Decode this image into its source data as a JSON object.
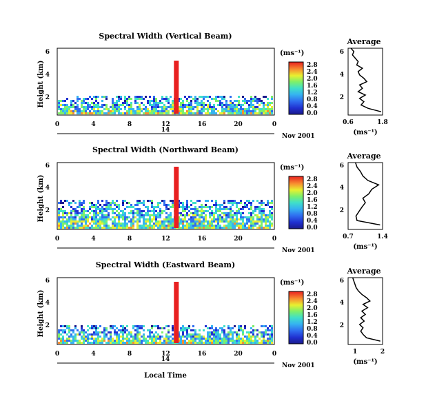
{
  "figure": {
    "footer_label": "Local Time",
    "date_label": "Nov 2001",
    "date_day": "14"
  },
  "chart_data": [
    {
      "type": "heatmap",
      "title": "Spectral Width (Vertical Beam)",
      "xlabel": "",
      "ylabel": "Height (km)",
      "xlim": [
        0,
        24
      ],
      "ylim": [
        0,
        6
      ],
      "xticks": [
        "0",
        "4",
        "8",
        "12",
        "16",
        "20",
        "0"
      ],
      "yticks": [
        "2",
        "4",
        "6"
      ],
      "colorbar": {
        "unit": "(ms⁻¹)",
        "range": [
          0.0,
          2.8
        ],
        "tick_labels": [
          "0.0",
          "0.4",
          "0.8",
          "1.2",
          "1.6",
          "2.0",
          "2.4",
          "2.8"
        ]
      },
      "profile": {
        "title": "Average",
        "xlabel": "(ms⁻¹)",
        "xlim": [
          0.6,
          1.8
        ],
        "xticks": [
          "0.6",
          "1.8"
        ],
        "yticks": [
          "2",
          "4",
          "6"
        ],
        "heights": [
          0.3,
          0.6,
          0.9,
          1.2,
          1.5,
          1.8,
          2.1,
          2.4,
          2.7,
          3.0,
          3.3,
          3.6,
          3.9,
          4.2,
          4.5,
          4.8,
          5.1,
          5.4,
          5.7,
          6.0
        ],
        "values": [
          1.75,
          1.3,
          1.05,
          1.15,
          1.0,
          1.2,
          0.95,
          1.1,
          1.0,
          1.25,
          1.15,
          1.0,
          0.95,
          1.1,
          0.9,
          0.95,
          0.85,
          0.75,
          0.8,
          0.7
        ]
      }
    },
    {
      "type": "heatmap",
      "title": "Spectral Width (Northward Beam)",
      "xlabel": "",
      "ylabel": "Height (km)",
      "xlim": [
        0,
        24
      ],
      "ylim": [
        0,
        6
      ],
      "xticks": [
        "0",
        "4",
        "8",
        "12",
        "16",
        "20",
        "0"
      ],
      "yticks": [
        "2",
        "4",
        "6"
      ],
      "colorbar": {
        "unit": "(ms⁻¹)",
        "range": [
          0.0,
          2.8
        ],
        "tick_labels": [
          "0.0",
          "0.4",
          "0.8",
          "1.2",
          "1.6",
          "2.0",
          "2.4",
          "2.8"
        ]
      },
      "profile": {
        "title": "Average",
        "xlabel": "(ms⁻¹)",
        "xlim": [
          0.7,
          1.4
        ],
        "xticks": [
          "0.7",
          "1.4"
        ],
        "yticks": [
          "2",
          "4",
          "6"
        ],
        "heights": [
          0.4,
          0.8,
          1.2,
          1.6,
          2.0,
          2.4,
          2.8,
          3.2,
          3.6,
          4.0,
          4.4,
          4.8,
          5.2,
          5.6,
          6.0
        ],
        "values": [
          1.35,
          0.88,
          0.86,
          0.92,
          0.98,
          1.05,
          1.0,
          1.12,
          1.18,
          1.32,
          1.1,
          1.0,
          0.95,
          0.88,
          0.85
        ]
      }
    },
    {
      "type": "heatmap",
      "title": "Spectral Width (Eastward Beam)",
      "xlabel": "Local Time",
      "ylabel": "Height (km)",
      "xlim": [
        0,
        24
      ],
      "ylim": [
        0,
        6
      ],
      "xticks": [
        "0",
        "4",
        "8",
        "12",
        "16",
        "20",
        "0"
      ],
      "yticks": [
        "2",
        "4",
        "6"
      ],
      "colorbar": {
        "unit": "(ms⁻¹)",
        "range": [
          0.0,
          2.8
        ],
        "tick_labels": [
          "0.0",
          "0.4",
          "0.8",
          "1.2",
          "1.6",
          "2.0",
          "2.4",
          "2.8"
        ]
      },
      "profile": {
        "title": "Average",
        "xlabel": "(ms⁻¹)",
        "xlim": [
          0.5,
          2.0
        ],
        "xticks": [
          "1",
          "2"
        ],
        "yticks": [
          "2",
          "4",
          "6"
        ],
        "heights": [
          0.3,
          0.6,
          0.9,
          1.2,
          1.5,
          1.8,
          2.1,
          2.4,
          2.7,
          3.0,
          3.3,
          3.6,
          3.9,
          4.2,
          4.5,
          4.8,
          5.1,
          5.4,
          5.7,
          6.0
        ],
        "values": [
          1.9,
          1.3,
          1.15,
          1.05,
          1.15,
          1.0,
          1.2,
          1.05,
          1.25,
          1.1,
          1.35,
          1.15,
          1.45,
          1.3,
          1.1,
          0.95,
          0.85,
          0.8,
          0.75,
          0.7
        ]
      }
    }
  ]
}
